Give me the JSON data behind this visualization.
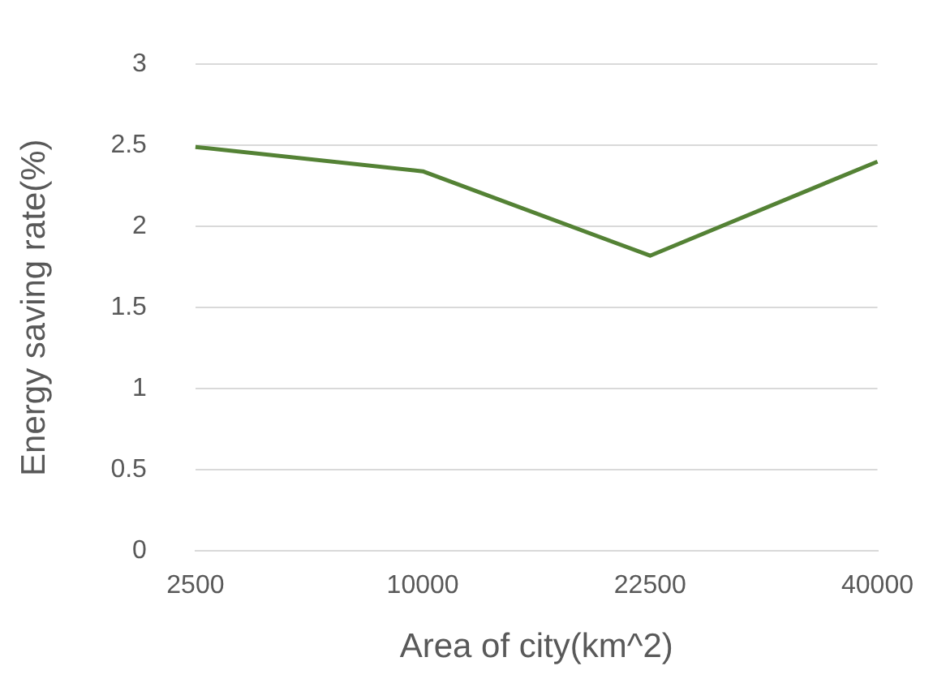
{
  "chart_data": {
    "type": "line",
    "xlabel": "Area of city(km^2)",
    "ylabel": "Energy saving rate(%)",
    "categories": [
      "2500",
      "10000",
      "22500",
      "40000"
    ],
    "series": [
      {
        "color": "#548235",
        "values": [
          2.49,
          2.34,
          1.82,
          2.4
        ]
      }
    ],
    "ylim": [
      0,
      3
    ],
    "yticks": [
      0,
      0.5,
      1,
      1.5,
      2,
      2.5,
      3
    ],
    "grid": "y",
    "legend": false,
    "marker": "none",
    "line_style": "solid"
  }
}
